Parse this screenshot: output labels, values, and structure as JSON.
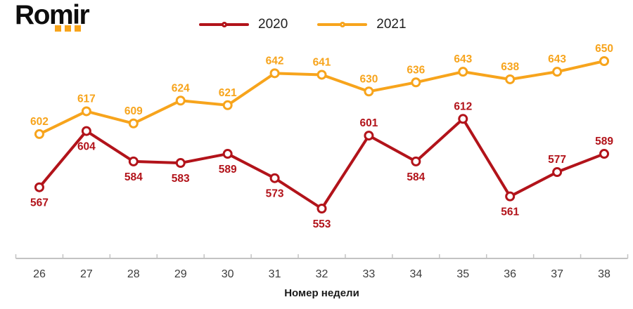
{
  "logo": {
    "text": "Romir"
  },
  "chart_data": {
    "type": "line",
    "title": "",
    "xlabel": "Номер недели",
    "ylabel": "",
    "categories": [
      26,
      27,
      28,
      29,
      30,
      31,
      32,
      33,
      34,
      35,
      36,
      37,
      38
    ],
    "series": [
      {
        "name": "2020",
        "color": "#B2131A",
        "values": [
          567,
          604,
          584,
          583,
          589,
          573,
          553,
          601,
          584,
          612,
          561,
          577,
          589
        ],
        "label_positions": [
          "below",
          "below",
          "below",
          "below",
          "below",
          "below",
          "below",
          "above",
          "below",
          "above",
          "below",
          "above",
          "above"
        ]
      },
      {
        "name": "2021",
        "color": "#F7A41C",
        "values": [
          602,
          617,
          609,
          624,
          621,
          642,
          641,
          630,
          636,
          643,
          638,
          643,
          650
        ],
        "label_positions": [
          "above",
          "above",
          "above",
          "above",
          "above",
          "above",
          "above",
          "above",
          "above",
          "above",
          "above",
          "above",
          "above"
        ]
      }
    ],
    "ylim": [
      540,
      665
    ],
    "grid": false,
    "legend_position": "top-center",
    "marker": "open-circle",
    "data_labels": true,
    "axis_color": "#C3C3C3",
    "tick_label_color": "#3C3C3C",
    "xlabel_color": "#1a1a1a"
  }
}
